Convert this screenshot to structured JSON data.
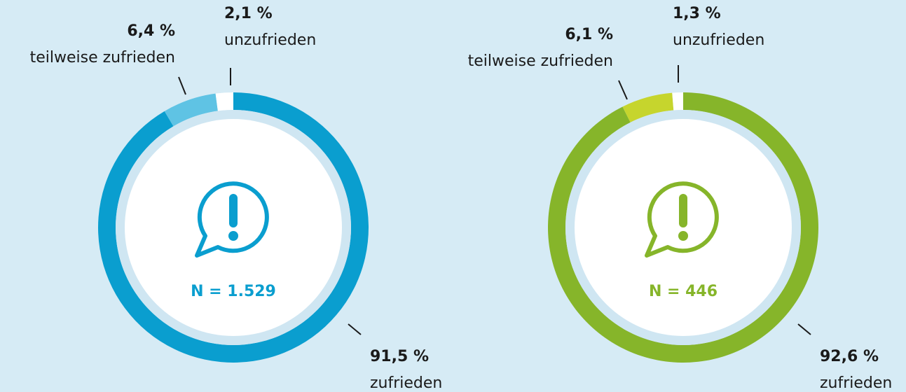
{
  "chart_data": [
    {
      "type": "donut",
      "center_label": "N = 1.529",
      "categories": [
        "zufrieden",
        "teilweise zufrieden",
        "unzufrieden"
      ],
      "values": [
        91.5,
        6.4,
        2.1
      ],
      "value_labels": [
        "91,5 %",
        "6,4 %",
        "2,1 %"
      ],
      "colors": [
        "#0a9ecf",
        "#5fc3e4",
        "#ffffff"
      ]
    },
    {
      "type": "donut",
      "center_label": "N = 446",
      "categories": [
        "zufrieden",
        "teilweise zufrieden",
        "unzufrieden"
      ],
      "values": [
        92.6,
        6.1,
        1.3
      ],
      "value_labels": [
        "92,6 %",
        "6,1 %",
        "1,3 %"
      ],
      "colors": [
        "#86b52a",
        "#c6d52d",
        "#ffffff"
      ]
    }
  ]
}
